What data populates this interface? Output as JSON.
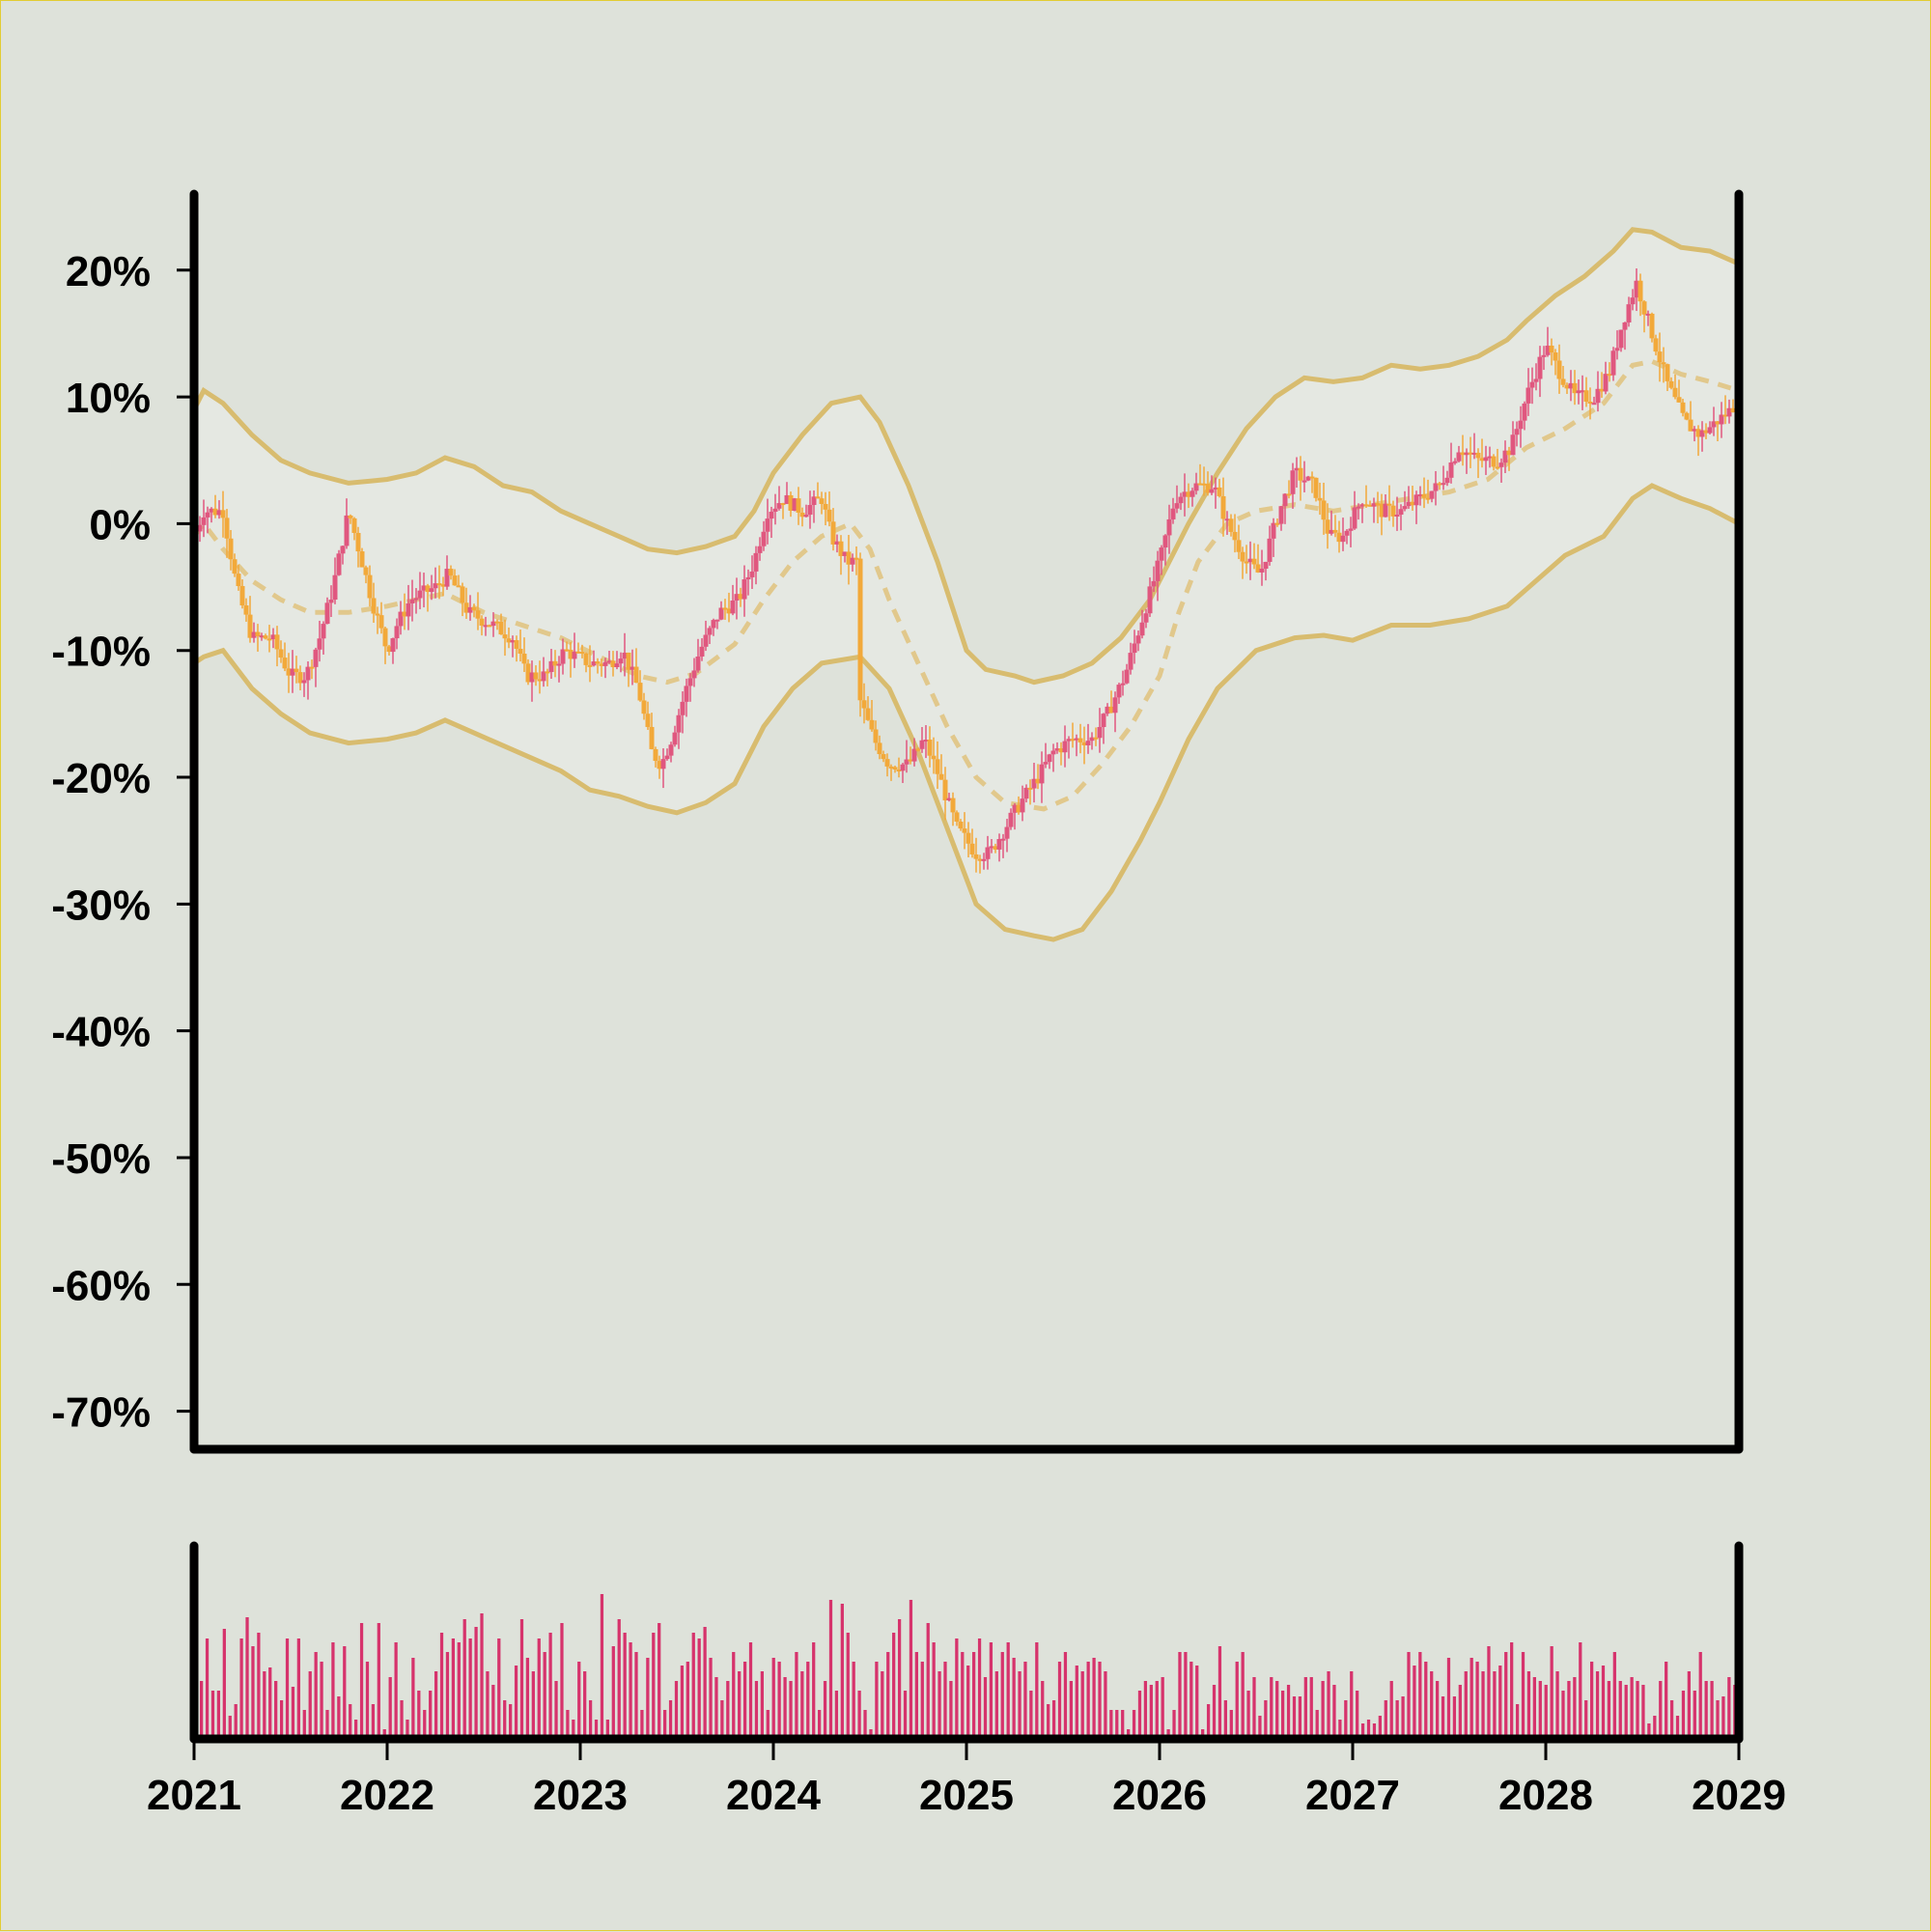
{
  "chart_data": {
    "type": "candlestick",
    "title": "",
    "xlabel": "",
    "ylabel": "",
    "y_unit": "%",
    "ylim": [
      -73,
      26
    ],
    "xlim": [
      2021.0,
      2029.0
    ],
    "grid": false,
    "legend": "none",
    "y_ticks": [
      {
        "value": 20,
        "label": "20%"
      },
      {
        "value": 10,
        "label": "10%"
      },
      {
        "value": 0,
        "label": "0%"
      },
      {
        "value": -10,
        "label": "-10%"
      },
      {
        "value": -20,
        "label": "-20%"
      },
      {
        "value": -30,
        "label": "-30%"
      },
      {
        "value": -40,
        "label": "-40%"
      },
      {
        "value": -50,
        "label": "-50%"
      },
      {
        "value": -60,
        "label": "-60%"
      },
      {
        "value": -70,
        "label": "-70%"
      }
    ],
    "x_ticks": [
      {
        "value": 2021,
        "label": "2021"
      },
      {
        "value": 2022,
        "label": "2022"
      },
      {
        "value": 2023,
        "label": "2023"
      },
      {
        "value": 2024,
        "label": "2024"
      },
      {
        "value": 2025,
        "label": "2025"
      },
      {
        "value": 2026,
        "label": "2026"
      },
      {
        "value": 2027,
        "label": "2027"
      },
      {
        "value": 2028,
        "label": "2028"
      },
      {
        "value": 2029,
        "label": "2029"
      }
    ],
    "close_path": [
      [
        2021.0,
        -1
      ],
      [
        2021.05,
        1
      ],
      [
        2021.15,
        1
      ],
      [
        2021.22,
        -5
      ],
      [
        2021.3,
        -9
      ],
      [
        2021.4,
        -9
      ],
      [
        2021.5,
        -12
      ],
      [
        2021.58,
        -12
      ],
      [
        2021.65,
        -9
      ],
      [
        2021.72,
        -5
      ],
      [
        2021.8,
        1
      ],
      [
        2021.87,
        -3
      ],
      [
        2021.92,
        -6
      ],
      [
        2022.0,
        -10
      ],
      [
        2022.05,
        -8
      ],
      [
        2022.12,
        -6
      ],
      [
        2022.25,
        -5
      ],
      [
        2022.32,
        -4
      ],
      [
        2022.42,
        -7
      ],
      [
        2022.55,
        -8
      ],
      [
        2022.65,
        -9
      ],
      [
        2022.72,
        -12
      ],
      [
        2022.82,
        -12
      ],
      [
        2022.92,
        -10
      ],
      [
        2023.05,
        -11
      ],
      [
        2023.15,
        -11
      ],
      [
        2023.22,
        -10
      ],
      [
        2023.3,
        -13
      ],
      [
        2023.37,
        -18
      ],
      [
        2023.42,
        -19
      ],
      [
        2023.47,
        -17
      ],
      [
        2023.55,
        -13
      ],
      [
        2023.62,
        -10
      ],
      [
        2023.72,
        -7
      ],
      [
        2023.82,
        -6
      ],
      [
        2023.9,
        -3
      ],
      [
        2023.97,
        1
      ],
      [
        2024.05,
        2
      ],
      [
        2024.15,
        1
      ],
      [
        2024.25,
        2
      ],
      [
        2024.3,
        -1
      ],
      [
        2024.38,
        -3
      ],
      [
        2024.44,
        -3
      ],
      [
        2024.45,
        -14
      ],
      [
        2024.52,
        -17
      ],
      [
        2024.6,
        -19
      ],
      [
        2024.7,
        -19
      ],
      [
        2024.78,
        -17
      ],
      [
        2024.86,
        -20
      ],
      [
        2024.95,
        -24
      ],
      [
        2025.05,
        -26
      ],
      [
        2025.12,
        -26
      ],
      [
        2025.2,
        -24
      ],
      [
        2025.28,
        -22
      ],
      [
        2025.37,
        -20
      ],
      [
        2025.45,
        -18
      ],
      [
        2025.55,
        -17
      ],
      [
        2025.65,
        -17
      ],
      [
        2025.73,
        -15
      ],
      [
        2025.82,
        -12
      ],
      [
        2025.92,
        -7
      ],
      [
        2026.0,
        -3
      ],
      [
        2026.08,
        2
      ],
      [
        2026.18,
        3
      ],
      [
        2026.28,
        3
      ],
      [
        2026.35,
        0
      ],
      [
        2026.45,
        -3
      ],
      [
        2026.52,
        -4
      ],
      [
        2026.62,
        1
      ],
      [
        2026.7,
        4
      ],
      [
        2026.8,
        3
      ],
      [
        2026.88,
        -1
      ],
      [
        2026.95,
        -1
      ],
      [
        2027.05,
        2
      ],
      [
        2027.15,
        1
      ],
      [
        2027.25,
        1
      ],
      [
        2027.35,
        2
      ],
      [
        2027.45,
        3
      ],
      [
        2027.55,
        6
      ],
      [
        2027.65,
        5
      ],
      [
        2027.75,
        5
      ],
      [
        2027.82,
        6
      ],
      [
        2027.9,
        10
      ],
      [
        2028.0,
        14
      ],
      [
        2028.07,
        12
      ],
      [
        2028.15,
        10
      ],
      [
        2028.25,
        10
      ],
      [
        2028.33,
        12
      ],
      [
        2028.4,
        16
      ],
      [
        2028.47,
        19
      ],
      [
        2028.55,
        15
      ],
      [
        2028.63,
        11
      ],
      [
        2028.72,
        8
      ],
      [
        2028.8,
        7
      ],
      [
        2028.88,
        8
      ],
      [
        2028.96,
        9
      ],
      [
        2029.0,
        10
      ]
    ],
    "middle_band": [
      [
        2021.0,
        -1
      ],
      [
        2021.05,
        0
      ],
      [
        2021.15,
        -2
      ],
      [
        2021.3,
        -4.5
      ],
      [
        2021.45,
        -6
      ],
      [
        2021.6,
        -7
      ],
      [
        2021.8,
        -7
      ],
      [
        2022.0,
        -6.5
      ],
      [
        2022.15,
        -6
      ],
      [
        2022.3,
        -5.5
      ],
      [
        2022.5,
        -7
      ],
      [
        2022.7,
        -8
      ],
      [
        2022.9,
        -9
      ],
      [
        2023.1,
        -10.5
      ],
      [
        2023.3,
        -12
      ],
      [
        2023.45,
        -12.5
      ],
      [
        2023.6,
        -11.8
      ],
      [
        2023.8,
        -9.5
      ],
      [
        2023.95,
        -6
      ],
      [
        2024.1,
        -3
      ],
      [
        2024.25,
        -1
      ],
      [
        2024.4,
        0
      ],
      [
        2024.5,
        -2
      ],
      [
        2024.6,
        -6
      ],
      [
        2024.75,
        -11
      ],
      [
        2024.9,
        -16
      ],
      [
        2025.05,
        -20
      ],
      [
        2025.2,
        -22
      ],
      [
        2025.4,
        -22.5
      ],
      [
        2025.55,
        -21.5
      ],
      [
        2025.7,
        -19
      ],
      [
        2025.85,
        -16
      ],
      [
        2026.0,
        -12
      ],
      [
        2026.1,
        -7
      ],
      [
        2026.2,
        -3
      ],
      [
        2026.35,
        0
      ],
      [
        2026.5,
        1
      ],
      [
        2026.7,
        1.5
      ],
      [
        2026.9,
        1
      ],
      [
        2027.1,
        1.5
      ],
      [
        2027.3,
        2
      ],
      [
        2027.5,
        2.5
      ],
      [
        2027.7,
        3.5
      ],
      [
        2027.9,
        6
      ],
      [
        2028.1,
        7.5
      ],
      [
        2028.3,
        9.5
      ],
      [
        2028.45,
        12.5
      ],
      [
        2028.55,
        12.8
      ],
      [
        2028.7,
        11.8
      ],
      [
        2028.85,
        11.2
      ],
      [
        2029.0,
        10.5
      ]
    ],
    "upper_band": [
      [
        2021.0,
        9
      ],
      [
        2021.05,
        10.5
      ],
      [
        2021.15,
        9.5
      ],
      [
        2021.3,
        7
      ],
      [
        2021.45,
        5
      ],
      [
        2021.6,
        4
      ],
      [
        2021.8,
        3.2
      ],
      [
        2022.0,
        3.5
      ],
      [
        2022.15,
        4
      ],
      [
        2022.3,
        5.2
      ],
      [
        2022.45,
        4.5
      ],
      [
        2022.6,
        3
      ],
      [
        2022.75,
        2.5
      ],
      [
        2022.9,
        1
      ],
      [
        2023.05,
        0
      ],
      [
        2023.2,
        -1
      ],
      [
        2023.35,
        -2
      ],
      [
        2023.5,
        -2.3
      ],
      [
        2023.65,
        -1.8
      ],
      [
        2023.8,
        -1
      ],
      [
        2023.9,
        1
      ],
      [
        2024.0,
        4
      ],
      [
        2024.15,
        7
      ],
      [
        2024.3,
        9.5
      ],
      [
        2024.45,
        10
      ],
      [
        2024.55,
        8
      ],
      [
        2024.7,
        3
      ],
      [
        2024.85,
        -3
      ],
      [
        2025.0,
        -10
      ],
      [
        2025.1,
        -11.5
      ],
      [
        2025.25,
        -12
      ],
      [
        2025.35,
        -12.5
      ],
      [
        2025.5,
        -12
      ],
      [
        2025.65,
        -11
      ],
      [
        2025.8,
        -9
      ],
      [
        2025.95,
        -6
      ],
      [
        2026.05,
        -3
      ],
      [
        2026.15,
        0
      ],
      [
        2026.3,
        4
      ],
      [
        2026.45,
        7.5
      ],
      [
        2026.6,
        10
      ],
      [
        2026.75,
        11.5
      ],
      [
        2026.9,
        11.2
      ],
      [
        2027.05,
        11.5
      ],
      [
        2027.2,
        12.5
      ],
      [
        2027.35,
        12.2
      ],
      [
        2027.5,
        12.5
      ],
      [
        2027.65,
        13.2
      ],
      [
        2027.8,
        14.5
      ],
      [
        2027.9,
        16
      ],
      [
        2028.05,
        18
      ],
      [
        2028.2,
        19.5
      ],
      [
        2028.35,
        21.5
      ],
      [
        2028.45,
        23.2
      ],
      [
        2028.55,
        23
      ],
      [
        2028.7,
        21.8
      ],
      [
        2028.85,
        21.5
      ],
      [
        2029.0,
        20.5
      ]
    ],
    "lower_band": [
      [
        2021.0,
        -11
      ],
      [
        2021.05,
        -10.5
      ],
      [
        2021.15,
        -10
      ],
      [
        2021.3,
        -13
      ],
      [
        2021.45,
        -15
      ],
      [
        2021.6,
        -16.5
      ],
      [
        2021.8,
        -17.3
      ],
      [
        2022.0,
        -17
      ],
      [
        2022.15,
        -16.5
      ],
      [
        2022.3,
        -15.5
      ],
      [
        2022.45,
        -16.5
      ],
      [
        2022.6,
        -17.5
      ],
      [
        2022.75,
        -18.5
      ],
      [
        2022.9,
        -19.5
      ],
      [
        2023.05,
        -21
      ],
      [
        2023.2,
        -21.5
      ],
      [
        2023.35,
        -22.3
      ],
      [
        2023.5,
        -22.8
      ],
      [
        2023.65,
        -22
      ],
      [
        2023.8,
        -20.5
      ],
      [
        2023.95,
        -16
      ],
      [
        2024.1,
        -13
      ],
      [
        2024.25,
        -11
      ],
      [
        2024.45,
        -10.5
      ],
      [
        2024.6,
        -13
      ],
      [
        2024.75,
        -18
      ],
      [
        2024.9,
        -24
      ],
      [
        2025.05,
        -30
      ],
      [
        2025.2,
        -32
      ],
      [
        2025.35,
        -32.5
      ],
      [
        2025.45,
        -32.8
      ],
      [
        2025.6,
        -32
      ],
      [
        2025.75,
        -29
      ],
      [
        2025.9,
        -25
      ],
      [
        2026.0,
        -22
      ],
      [
        2026.15,
        -17
      ],
      [
        2026.3,
        -13
      ],
      [
        2026.5,
        -10
      ],
      [
        2026.7,
        -9
      ],
      [
        2026.85,
        -8.8
      ],
      [
        2027.0,
        -9.2
      ],
      [
        2027.2,
        -8
      ],
      [
        2027.4,
        -8
      ],
      [
        2027.6,
        -7.5
      ],
      [
        2027.8,
        -6.5
      ],
      [
        2027.95,
        -4.5
      ],
      [
        2028.1,
        -2.5
      ],
      [
        2028.3,
        -1
      ],
      [
        2028.45,
        2
      ],
      [
        2028.55,
        3
      ],
      [
        2028.7,
        2
      ],
      [
        2028.85,
        1.2
      ],
      [
        2029.0,
        0
      ]
    ],
    "volume": {
      "ylim": [
        0,
        100
      ],
      "values": [
        30,
        52,
        25,
        25,
        57,
        12,
        18,
        52,
        63,
        48,
        55,
        35,
        37,
        30,
        20,
        52,
        27,
        52,
        15,
        35,
        45,
        40,
        15,
        50,
        22,
        48,
        18,
        10,
        60,
        40,
        18,
        60,
        5,
        32,
        50,
        20,
        10,
        42,
        25,
        15,
        25,
        35,
        55,
        45,
        52,
        50,
        62,
        52,
        58,
        65,
        35,
        28,
        52,
        20,
        18,
        38,
        62,
        42,
        35,
        52,
        45,
        55,
        30,
        60,
        15,
        10,
        40,
        35,
        20,
        10,
        75,
        10,
        48,
        62,
        55,
        50,
        45,
        15,
        42,
        55,
        60,
        15,
        20,
        30,
        38,
        40,
        55,
        52,
        58,
        42,
        32,
        20,
        30,
        45,
        35,
        40,
        50,
        30,
        35,
        15,
        42,
        40,
        32,
        30,
        45,
        35,
        40,
        50,
        15,
        30,
        72,
        25,
        70,
        55,
        40,
        25,
        15,
        5,
        40,
        35,
        45,
        55,
        62,
        25,
        72,
        45,
        40,
        60,
        50,
        35,
        40,
        30,
        52,
        45,
        38,
        45,
        52,
        32,
        50,
        35,
        45,
        50,
        42,
        35,
        40,
        25,
        50,
        30,
        18,
        20,
        40,
        45,
        30,
        38,
        35,
        40,
        42,
        40,
        35,
        15,
        15,
        15,
        5,
        15,
        25,
        30,
        28,
        30,
        32,
        5,
        15,
        45,
        45,
        40,
        38,
        5,
        18,
        28,
        48,
        20,
        15,
        40,
        45,
        25,
        32,
        12,
        20,
        32,
        30,
        25,
        28,
        22,
        22,
        32,
        32,
        15,
        30,
        35,
        28,
        10,
        20,
        35,
        25,
        8,
        10,
        8,
        12,
        20,
        30,
        20,
        22,
        45,
        38,
        45,
        40,
        35,
        30,
        22,
        42,
        22,
        28,
        35,
        42,
        40,
        35,
        48,
        35,
        38,
        45,
        50,
        18,
        45,
        35,
        32,
        30,
        28,
        48,
        35,
        25,
        30,
        32,
        50,
        20,
        40,
        35,
        38,
        30,
        45,
        30,
        28,
        32,
        30,
        28,
        8,
        12,
        30,
        40,
        20,
        12,
        25,
        35,
        25,
        45,
        30,
        30,
        20,
        22,
        32,
        28,
        5
      ]
    },
    "colors": {
      "up": "#e0577f",
      "down": "#f2a93a",
      "band_line": "#d8bc6f",
      "band_fill": "#e5e8e2",
      "mid_line": "#e1c88c",
      "volume": "#d6336c",
      "axis": "#000000",
      "background": "#dee2da"
    }
  }
}
